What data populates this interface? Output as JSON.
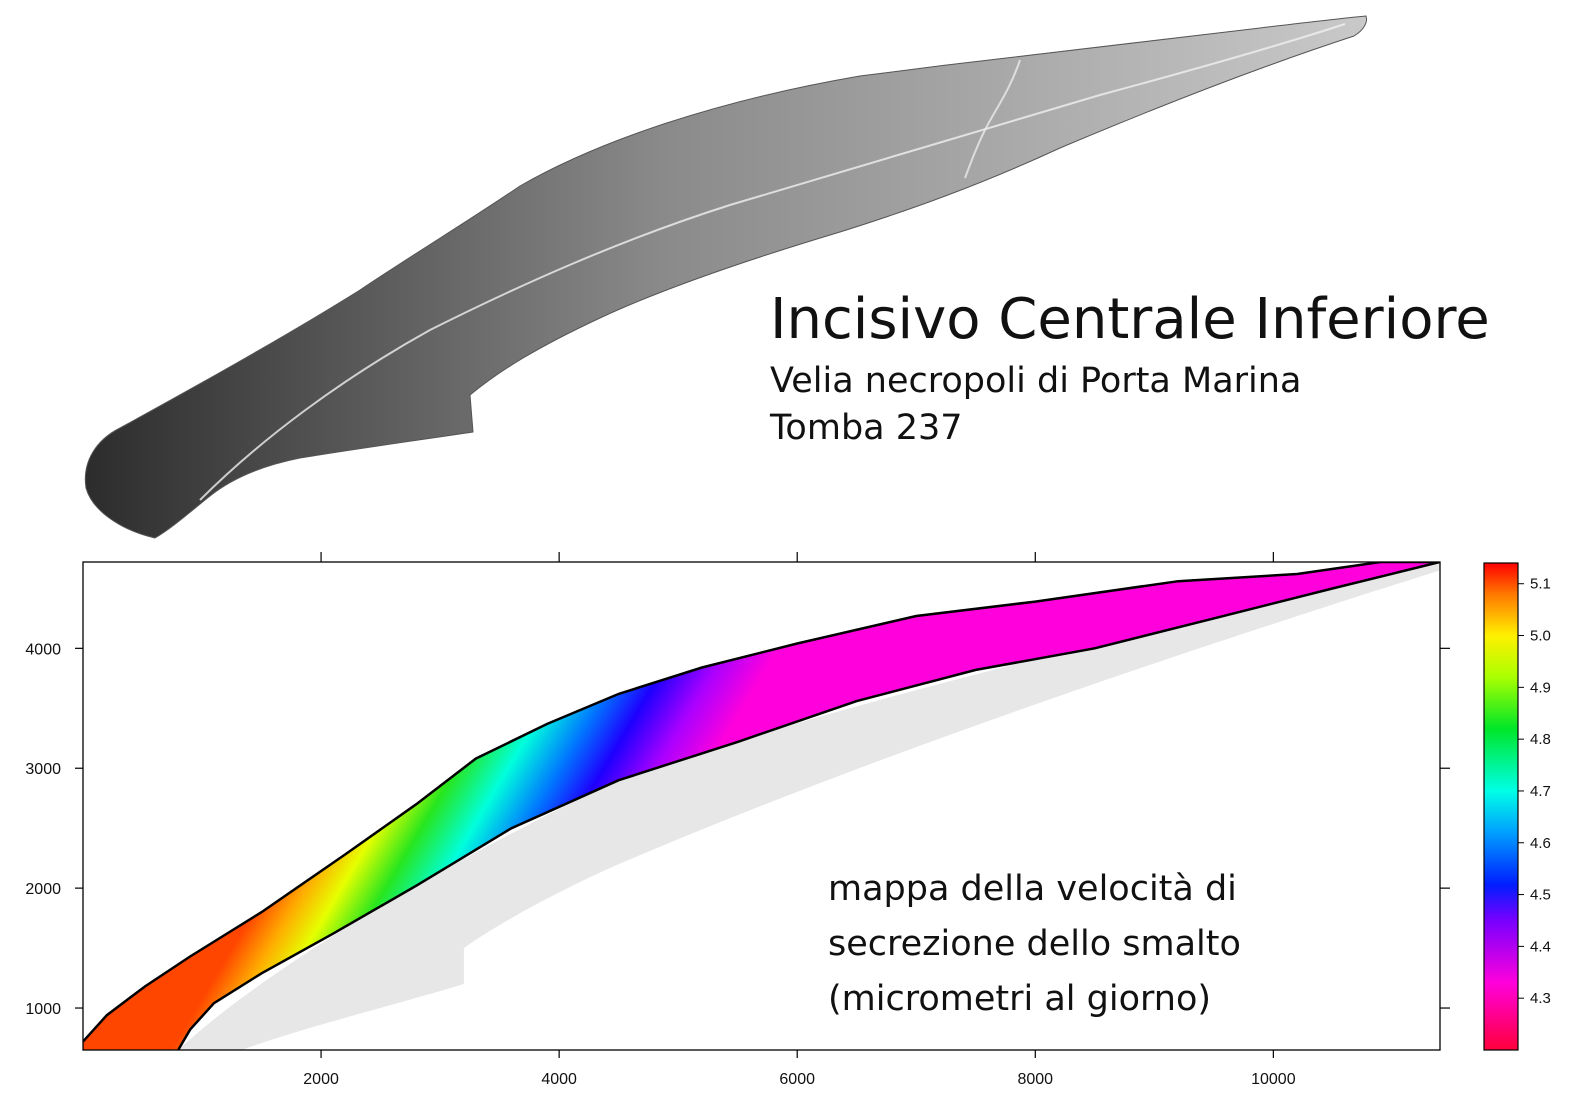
{
  "header": {
    "title": "Incisivo Centrale Inferiore",
    "subtitle_line1": "Velia necropoli di Porta Marina",
    "subtitle_line2": "Tomba 237"
  },
  "plot_caption": {
    "line1": "mappa della velocità di",
    "line2": "secrezione dello smalto",
    "line3": "(micrometri al giorno)"
  },
  "colors": {
    "photo_dark": "#2c2c2c",
    "photo_mid": "#8a8a8a",
    "photo_light": "#c9c9c9",
    "ghost_gray": "#e4e4e4",
    "outline": "#000000"
  },
  "chart_data": {
    "type": "heatmap",
    "title": "",
    "xlabel": "",
    "ylabel": "",
    "xlim": [
      0,
      11400
    ],
    "ylim": [
      650,
      4720
    ],
    "x_ticks": [
      2000,
      4000,
      6000,
      8000,
      10000
    ],
    "y_ticks": [
      1000,
      2000,
      3000,
      4000
    ],
    "colorbar": {
      "min": 4.2,
      "max": 5.14,
      "ticks": [
        4.3,
        4.4,
        4.5,
        4.6,
        4.7,
        4.8,
        4.9,
        5.0,
        5.1
      ],
      "tick_labels": [
        "4.3",
        "4.4",
        "4.5",
        "4.6",
        "4.7",
        "4.8",
        "4.9",
        "5.0",
        "5.1"
      ],
      "colormap": "rainbow (red-magenta-blue-cyan-green-yellow-red)"
    },
    "field_description": "Enamel band colored by enamel secretion rate; highest values (about 5.1) along the outer surface near the cervical end, decreasing across the band to about 4.4 along the inner edge and toward the incisal tip.",
    "enamel_outer_edge": [
      [
        0,
        720
      ],
      [
        200,
        940
      ],
      [
        520,
        1180
      ],
      [
        900,
        1430
      ],
      [
        1500,
        1800
      ],
      [
        2200,
        2280
      ],
      [
        2800,
        2700
      ],
      [
        3300,
        3080
      ],
      [
        3900,
        3370
      ],
      [
        4500,
        3620
      ],
      [
        5200,
        3840
      ],
      [
        6000,
        4040
      ],
      [
        7000,
        4270
      ],
      [
        8000,
        4390
      ],
      [
        9200,
        4560
      ],
      [
        10200,
        4620
      ],
      [
        10900,
        4720
      ],
      [
        11400,
        4720
      ]
    ],
    "enamel_inner_edge": [
      [
        11400,
        4720
      ],
      [
        10500,
        4500
      ],
      [
        9500,
        4250
      ],
      [
        8500,
        4000
      ],
      [
        7500,
        3820
      ],
      [
        6500,
        3560
      ],
      [
        5500,
        3220
      ],
      [
        4500,
        2900
      ],
      [
        3600,
        2500
      ],
      [
        2800,
        2020
      ],
      [
        2100,
        1620
      ],
      [
        1500,
        1290
      ],
      [
        1100,
        1040
      ],
      [
        900,
        820
      ],
      [
        800,
        650
      ],
      [
        0,
        650
      ]
    ]
  }
}
